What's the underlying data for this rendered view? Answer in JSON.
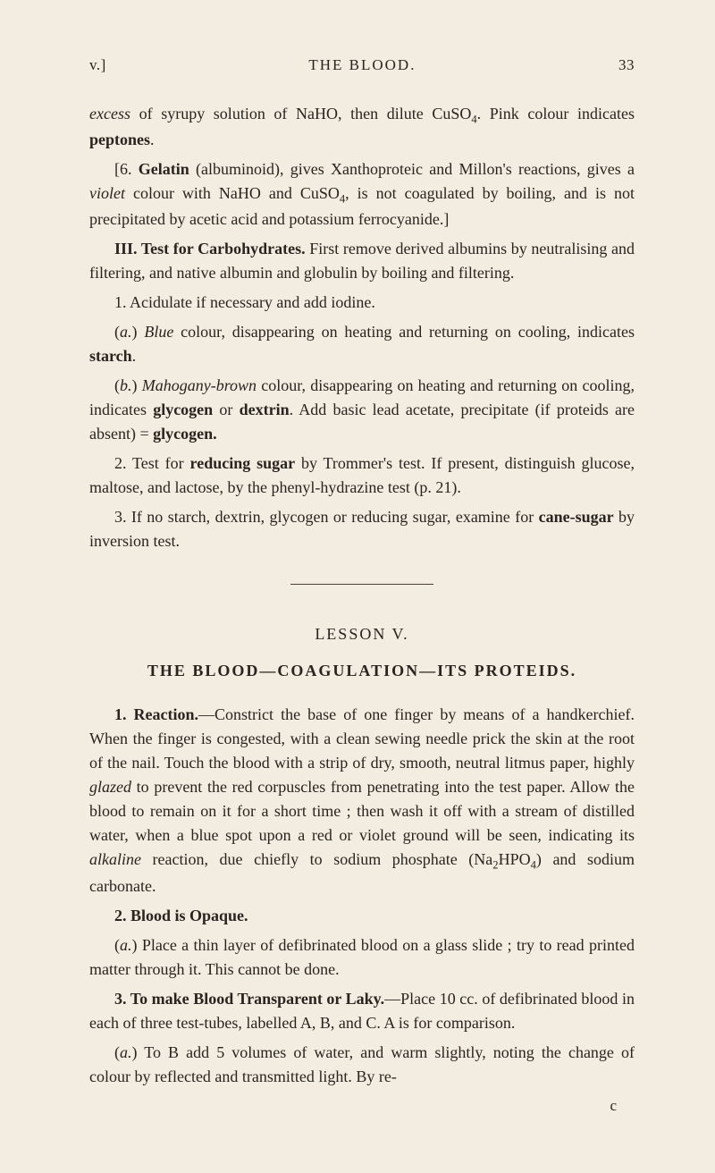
{
  "page": {
    "running_left": "v.]",
    "running_center": "THE BLOOD.",
    "running_right": "33",
    "signature": "c"
  },
  "top": {
    "p1_a": "excess",
    "p1_b": " of syrupy solution of NaHO, then dilute CuSO",
    "p1_sub": "4",
    "p1_c": ". Pink colour indicates ",
    "p1_d": "peptones",
    "p1_e": ".",
    "p2_a": "[6. ",
    "p2_b": "Gelatin",
    "p2_c": " (albuminoid), gives Xanthoproteic and Millon's reactions, gives a ",
    "p2_d": "violet",
    "p2_e": " colour with NaHO and CuSO",
    "p2_sub": "4",
    "p2_f": ", is not coagulated by boiling, and is not precipitated by acetic acid and potassium ferrocyanide.]",
    "p3_a": "III. Test for Carbohydrates.",
    "p3_b": " First remove derived albumins by neutralising and filtering, and native albumin and globulin by boiling and filtering.",
    "p4_a": "1. Acidulate if necessary and add iodine.",
    "p5_a": "(",
    "p5_b": "a.",
    "p5_c": ") ",
    "p5_d": "Blue",
    "p5_e": " colour, disappearing on heating and returning on cooling, indicates ",
    "p5_f": "starch",
    "p5_g": ".",
    "p6_a": "(",
    "p6_b": "b.",
    "p6_c": ") ",
    "p6_d": "Mahogany-brown",
    "p6_e": " colour, disappearing on heating and returning on cooling, indicates ",
    "p6_f": "glycogen",
    "p6_g": " or ",
    "p6_h": "dextrin",
    "p6_i": ". Add basic lead acetate, precipitate (if proteids are absent) = ",
    "p6_j": "glycogen.",
    "p7_a": "2. Test for ",
    "p7_b": "reducing sugar",
    "p7_c": " by Trommer's test. If present, distinguish glucose, maltose, and lactose, by the phenyl-hydrazine test (p. 21).",
    "p8_a": "3. If no starch, dextrin, glycogen or reducing sugar, examine for ",
    "p8_b": "cane-sugar",
    "p8_c": " by inversion test."
  },
  "lesson": {
    "head": "LESSON V.",
    "title": "THE BLOOD—COAGULATION—ITS PROTEIDS.",
    "p1_a": "1. Reaction.",
    "p1_b": "—Constrict the base of one finger by means of a handkerchief. When the finger is congested, with a clean sewing needle prick the skin at the root of the nail. Touch the blood with a strip of dry, smooth, neutral litmus paper, highly ",
    "p1_c": "glazed",
    "p1_d": " to prevent the red corpuscles from penetrating into the test paper. Allow the blood to remain on it for a short time ; then wash it off with a stream of distilled water, when a blue spot upon a red or violet ground will be seen, indicating its ",
    "p1_e": "alkaline",
    "p1_f": " reaction, due chiefly to sodium phosphate (Na",
    "p1_sub1": "2",
    "p1_g": "HPO",
    "p1_sub2": "4",
    "p1_h": ") and sodium carbonate.",
    "p2_a": "2. Blood is Opaque.",
    "p3_a": "(",
    "p3_b": "a.",
    "p3_c": ") Place a thin layer of defibrinated blood on a glass slide ; try to read printed matter through it. This cannot be done.",
    "p4_a": "3. To make Blood Transparent or Laky.",
    "p4_b": "—Place 10 cc. of defibrinated blood in each of three test-tubes, labelled A, B, and C. A is for comparison.",
    "p5_a": "(",
    "p5_b": "a.",
    "p5_c": ") To B add 5 volumes of water, and warm slightly, noting the change of colour by reflected and transmitted light. By re-"
  }
}
